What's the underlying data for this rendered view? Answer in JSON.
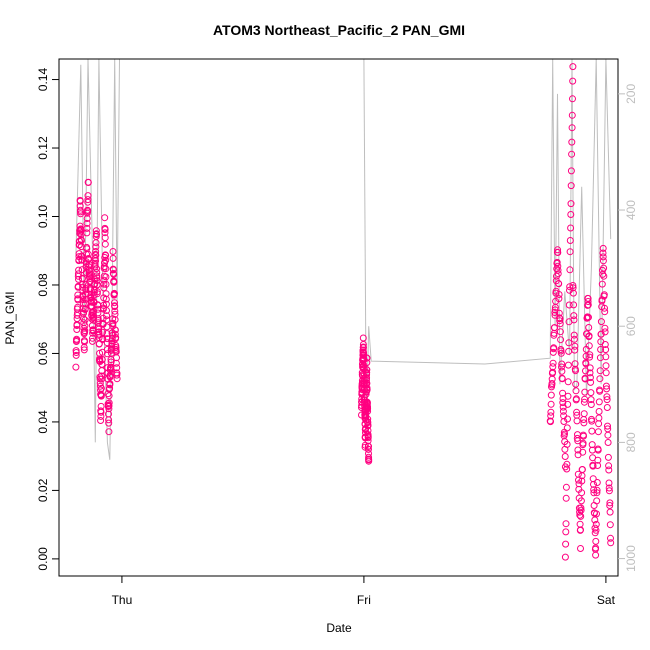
{
  "chart_data": {
    "type": "scatter",
    "title": "ATOM3 Northeast_Pacific_2 PAN_GMI",
    "xlabel": "Date",
    "ylabel": "PAN_GMI",
    "x_ticks": [
      "Thu",
      "Fri",
      "Sat"
    ],
    "y_ticks": [
      "0.00",
      "0.02",
      "0.04",
      "0.06",
      "0.08",
      "0.10",
      "0.12",
      "0.14"
    ],
    "ylim": [
      -0.005,
      0.146
    ],
    "xlim_days": [
      -0.26,
      2.05
    ],
    "secondary_y": {
      "ticks": [
        "200",
        "400",
        "600",
        "800",
        "1000"
      ],
      "ylim": [
        1030,
        140
      ],
      "color": "#bebebe"
    },
    "colors": {
      "points": "#ff0080",
      "line": "#bebebe"
    },
    "series": [
      {
        "kind": "points",
        "segments": [
          {
            "x0": -0.19,
            "x1": -0.02,
            "y_high": [
              0.098,
              0.105,
              0.111,
              0.088,
              0.096,
              0.085,
              0.09,
              0.1,
              0.07,
              0.088
            ],
            "y_low": [
              0.058,
              0.065,
              0.06,
              0.07,
              0.062,
              0.05,
              0.04,
              0.036,
              0.045,
              0.052
            ]
          },
          {
            "x0": 0.99,
            "x1": 1.02,
            "y_high": [
              0.064,
              0.062,
              0.058,
              0.05
            ],
            "y_low": [
              0.043,
              0.04,
              0.033,
              0.028
            ]
          },
          {
            "x0": 1.77,
            "x1": 2.02,
            "y_high": [
              0.091,
              0.085,
              0.142,
              0.08,
              0.078,
              0.075,
              0.09,
              0.088
            ],
            "y_low": [
              0.04,
              0.028,
              0.0,
              0.005,
              0.01,
              0.002,
              0.003,
              0.005
            ]
          }
        ]
      },
      {
        "kind": "secondary-line",
        "points": [
          [
            -0.19,
            480
          ],
          [
            -0.17,
            150
          ],
          [
            -0.155,
            600
          ],
          [
            -0.14,
            130
          ],
          [
            -0.12,
            500
          ],
          [
            -0.11,
            800
          ],
          [
            -0.095,
            140
          ],
          [
            -0.08,
            520
          ],
          [
            -0.06,
            800
          ],
          [
            -0.05,
            830
          ],
          [
            -0.04,
            550
          ],
          [
            -0.03,
            130
          ],
          [
            -0.02,
            560
          ],
          [
            -0.01,
            130
          ],
          [
            0.3,
            130
          ],
          [
            1.0,
            130
          ],
          [
            1.01,
            770
          ],
          [
            1.02,
            600
          ],
          [
            1.03,
            660
          ],
          [
            1.5,
            665
          ],
          [
            1.77,
            655
          ],
          [
            1.78,
            140
          ],
          [
            1.79,
            600
          ],
          [
            1.8,
            200
          ],
          [
            1.81,
            700
          ],
          [
            1.83,
            540
          ],
          [
            1.85,
            650
          ],
          [
            1.86,
            140
          ],
          [
            1.87,
            710
          ],
          [
            1.88,
            700
          ],
          [
            1.9,
            360
          ],
          [
            1.92,
            720
          ],
          [
            1.94,
            500
          ],
          [
            1.96,
            130
          ],
          [
            1.98,
            700
          ],
          [
            2.0,
            140
          ],
          [
            2.02,
            450
          ]
        ]
      }
    ]
  }
}
